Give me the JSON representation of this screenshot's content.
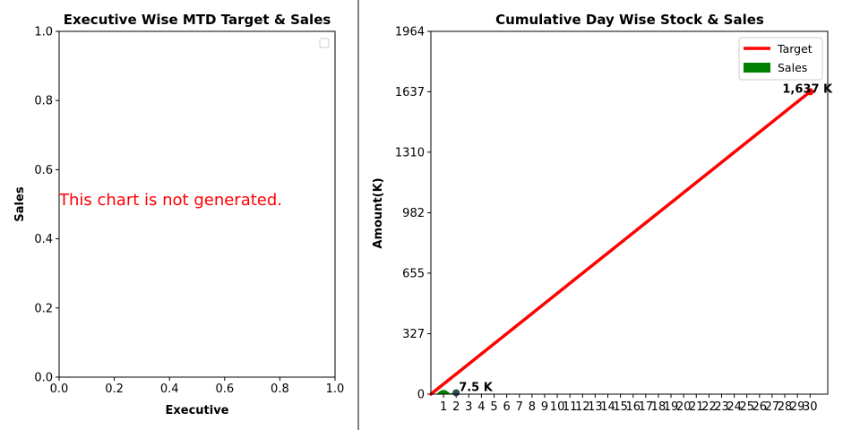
{
  "chart_data": [
    {
      "type": "bar",
      "title": "Executive Wise MTD Target & Sales",
      "xlabel": "Executive",
      "ylabel": "Sales",
      "xlim": [
        0,
        1
      ],
      "ylim": [
        0,
        1
      ],
      "xticks": [
        "0.0",
        "0.2",
        "0.4",
        "0.6",
        "0.8",
        "1.0"
      ],
      "yticks": [
        "0.0",
        "0.2",
        "0.4",
        "0.6",
        "0.8",
        "1.0"
      ],
      "message": "This chart is not generated.",
      "message_color": "#ff0000",
      "legend": "top-right",
      "legend_entries": [],
      "grid": false
    },
    {
      "type": "line",
      "title": "Cumulative Day Wise Stock & Sales",
      "xlabel": "",
      "ylabel": "Amount(K)",
      "x": [
        1,
        2,
        3,
        4,
        5,
        6,
        7,
        8,
        9,
        10,
        11,
        12,
        13,
        14,
        15,
        16,
        17,
        18,
        19,
        20,
        21,
        22,
        23,
        24,
        25,
        26,
        27,
        28,
        29,
        30
      ],
      "ylim": [
        0,
        1964
      ],
      "yticks": [
        "0",
        "327",
        "655",
        "982",
        "1310",
        "1637",
        "1964"
      ],
      "series": [
        {
          "name": "Target",
          "type": "line",
          "color": "#ff0000",
          "x": [
            0,
            30
          ],
          "values": [
            0,
            1637
          ]
        },
        {
          "name": "Sales",
          "type": "area",
          "color": "#008000",
          "x": [
            0,
            1,
            2
          ],
          "values": [
            0,
            7.5,
            7.5
          ]
        }
      ],
      "annotations": [
        {
          "x": 2,
          "y": 7.5,
          "text": "7.5 K"
        },
        {
          "x": 30,
          "y": 1637,
          "text": "1,637 K"
        }
      ],
      "legend": "top-right",
      "grid": false
    }
  ]
}
